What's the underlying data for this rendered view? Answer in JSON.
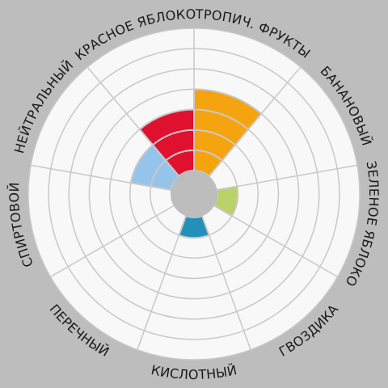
{
  "chart_data": {
    "type": "radial-bar",
    "categories": [
      "ТРОПИЧ. ФРУКТЫ",
      "БАНАНОВЫЙ",
      "ЗЕЛЕНОЕ ЯБЛОКО",
      "ГВОЗДИКА",
      "КИСЛОТНЫЙ",
      "ПЕРЕЧНЫЙ",
      "СПИРТОВОЙ",
      "НЕЙТРАЛЬНЫЙ",
      "КРАСНОЕ ЯБЛОКО"
    ],
    "values": [
      4,
      0,
      1,
      0,
      1,
      0,
      0,
      2,
      3
    ],
    "colors": [
      "#f5a30f",
      "#f0c419",
      "#bad267",
      "#7a9ad0",
      "#2290b8",
      "#5b86c4",
      "#c9a67e",
      "#94c4ea",
      "#e0112f"
    ],
    "rlim": [
      0,
      7
    ],
    "ring_count": 7,
    "background_color": "#f8f8f8",
    "grid": true
  }
}
